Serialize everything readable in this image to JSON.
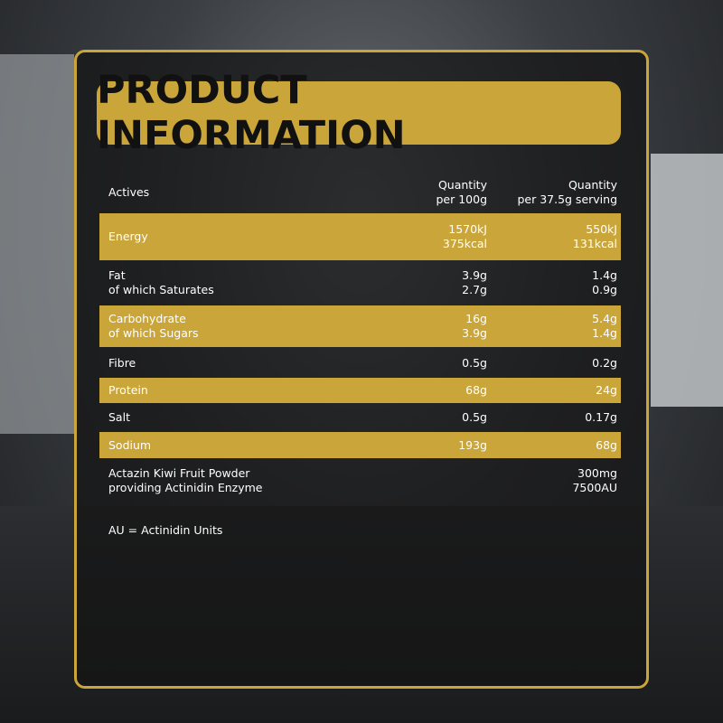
{
  "title": "PRODUCT INFORMATION",
  "table": {
    "header": {
      "label": [
        "Actives"
      ],
      "per_100g": [
        "Quantity",
        "per 100g"
      ],
      "per_serving": [
        "Quantity",
        "per 37.5g serving"
      ]
    },
    "rows": [
      {
        "label": [
          "Energy"
        ],
        "per_100g": [
          "1570kJ",
          "375kcal"
        ],
        "per_serving": [
          "550kJ",
          "131kcal"
        ],
        "highlight": true
      },
      {
        "label": [
          "Fat",
          "of which Saturates"
        ],
        "per_100g": [
          "3.9g",
          "2.7g"
        ],
        "per_serving": [
          "1.4g",
          "0.9g"
        ],
        "highlight": false
      },
      {
        "label": [
          "Carbohydrate",
          "of which Sugars"
        ],
        "per_100g": [
          "16g",
          "3.9g"
        ],
        "per_serving": [
          "5.4g",
          "1.4g"
        ],
        "highlight": true
      },
      {
        "label": [
          "Fibre"
        ],
        "per_100g": [
          "0.5g"
        ],
        "per_serving": [
          "0.2g"
        ],
        "highlight": false
      },
      {
        "label": [
          "Protein"
        ],
        "per_100g": [
          "68g"
        ],
        "per_serving": [
          "24g"
        ],
        "highlight": true
      },
      {
        "label": [
          "Salt"
        ],
        "per_100g": [
          "0.5g"
        ],
        "per_serving": [
          "0.17g"
        ],
        "highlight": false
      },
      {
        "label": [
          "Sodium"
        ],
        "per_100g": [
          "193g"
        ],
        "per_serving": [
          "68g"
        ],
        "highlight": true
      },
      {
        "label": [
          "Actazin Kiwi Fruit Powder",
          "providing Actinidin Enzyme"
        ],
        "per_100g": [],
        "per_serving": [
          "300mg",
          "7500AU"
        ],
        "highlight": false
      }
    ]
  },
  "footnote": "AU = Actinidin Units"
}
